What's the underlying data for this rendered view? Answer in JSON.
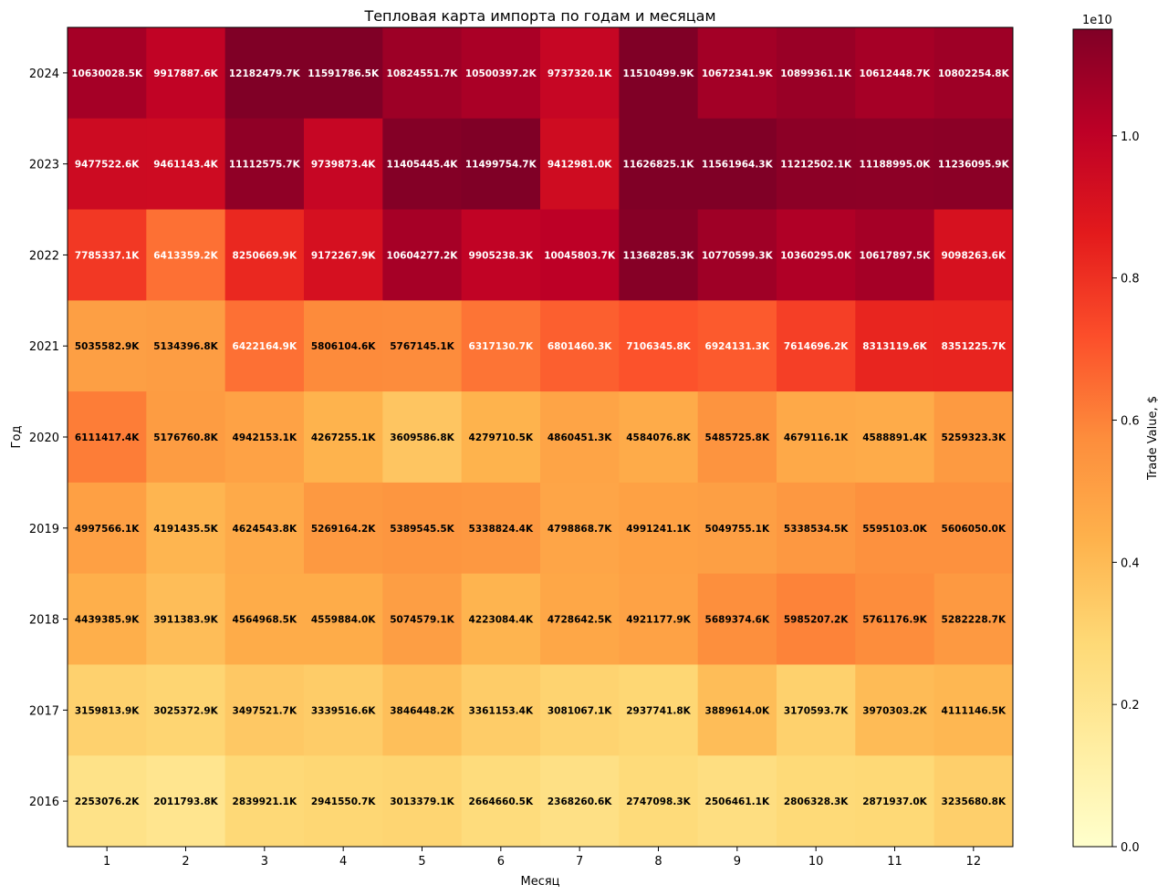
{
  "chart_data": {
    "type": "heatmap",
    "title": "Тепловая карта импорта по годам и месяцам",
    "xlabel": "Месяц",
    "ylabel": "Год",
    "x_categories": [
      "1",
      "2",
      "3",
      "4",
      "5",
      "6",
      "7",
      "8",
      "9",
      "10",
      "11",
      "12"
    ],
    "y_categories": [
      "2024",
      "2023",
      "2022",
      "2021",
      "2020",
      "2019",
      "2018",
      "2017",
      "2016"
    ],
    "values": [
      [
        10630028.5,
        9917887.6,
        12182479.7,
        11591786.5,
        10824551.7,
        10500397.2,
        9737320.1,
        11510499.9,
        10672341.9,
        10899361.1,
        10612448.7,
        10802254.8
      ],
      [
        9477522.6,
        9461143.4,
        11112575.7,
        9739873.4,
        11405445.4,
        11499754.7,
        9412981.0,
        11626825.1,
        11561964.3,
        11212502.1,
        11188995.0,
        11236095.9
      ],
      [
        7785337.1,
        6413359.2,
        8250669.9,
        9172267.9,
        10604277.2,
        9905238.3,
        10045803.7,
        11368285.3,
        10770599.3,
        10360295.0,
        10617897.5,
        9098263.6
      ],
      [
        5035582.9,
        5134396.8,
        6422164.9,
        5806104.6,
        5767145.1,
        6317130.7,
        6801460.3,
        7106345.8,
        6924131.3,
        7614696.2,
        8313119.6,
        8351225.7
      ],
      [
        6111417.4,
        5176760.8,
        4942153.1,
        4267255.1,
        3609586.8,
        4279710.5,
        4860451.3,
        4584076.8,
        5485725.8,
        4679116.1,
        4588891.4,
        5259323.3
      ],
      [
        4997566.1,
        4191435.5,
        4624543.8,
        5269164.2,
        5389545.5,
        5338824.4,
        4798868.7,
        4991241.1,
        5049755.1,
        5338534.5,
        5595103.0,
        5606050.0
      ],
      [
        4439385.9,
        3911383.9,
        4564968.5,
        4559884.0,
        5074579.1,
        4223084.4,
        4728642.5,
        4921177.9,
        5689374.6,
        5985207.2,
        5761176.9,
        5282228.7
      ],
      [
        3159813.9,
        3025372.9,
        3497521.7,
        3339516.6,
        3846448.2,
        3361153.4,
        3081067.1,
        2937741.8,
        3889614.0,
        3170593.7,
        3970303.2,
        4111146.5
      ],
      [
        2253076.2,
        2011793.8,
        2839921.1,
        2941550.7,
        3013379.1,
        2664660.5,
        2368260.6,
        2747098.3,
        2506461.1,
        2806328.3,
        2871937.0,
        3235680.8
      ]
    ],
    "value_suffix": "K",
    "colormap": "YlOrRd",
    "vmin": 0,
    "vmax": 11500000000,
    "colorbar": {
      "label": "Trade Value, $",
      "offset_text": "1e10",
      "ticks": [
        0.0,
        0.2,
        0.4,
        0.6,
        0.8,
        1.0
      ],
      "tick_labels": [
        "0.0",
        "0.2",
        "0.4",
        "0.6",
        "0.8",
        "1.0"
      ]
    },
    "grid": false,
    "colors": {
      "cmap_stops": [
        "#ffffcc",
        "#ffeda0",
        "#fed976",
        "#feb24c",
        "#fd8d3c",
        "#fc4e2a",
        "#e31a1c",
        "#bd0026",
        "#800026"
      ]
    }
  }
}
